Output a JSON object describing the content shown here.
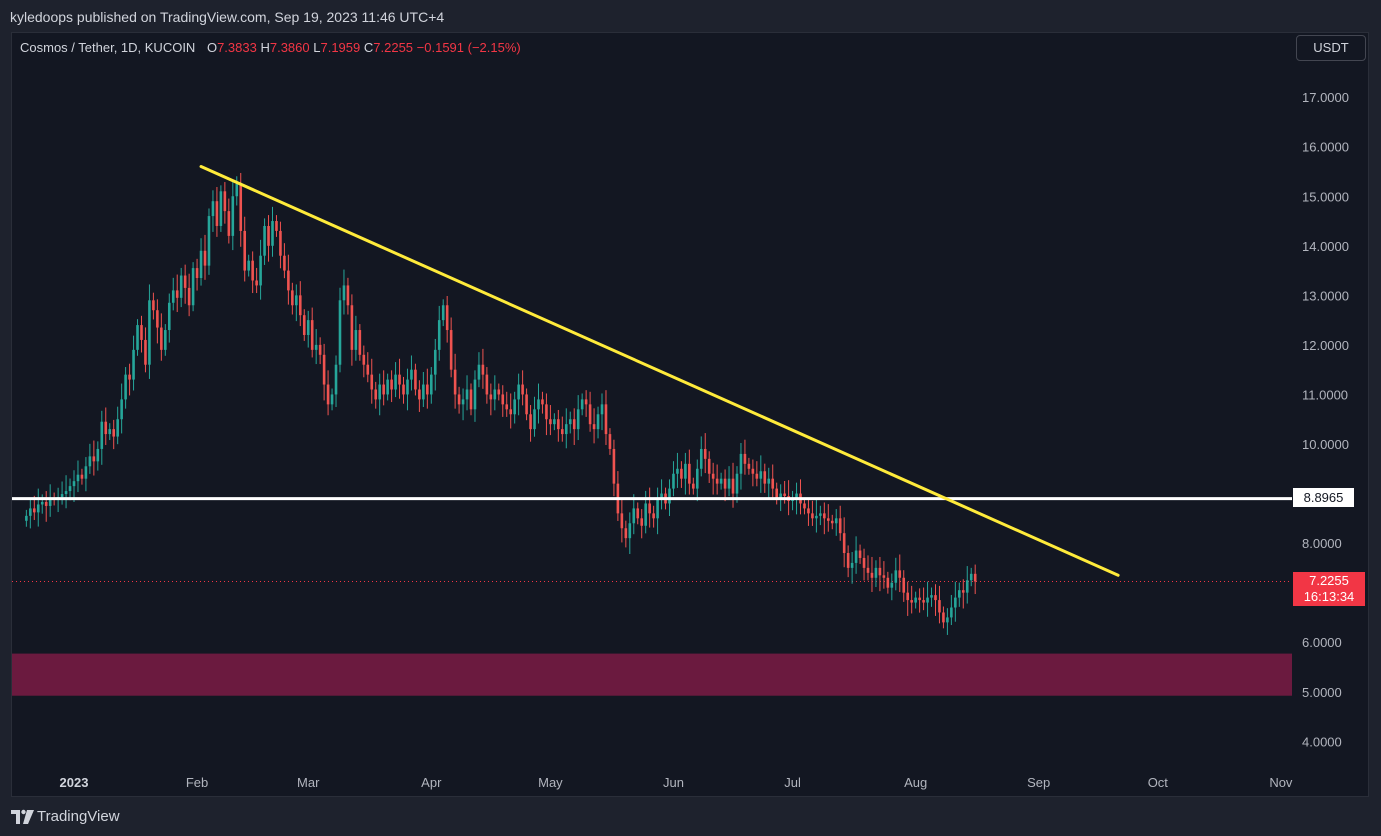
{
  "header": {
    "published_by": "kyledoops published on TradingView.com, Sep 19, 2023 11:46 UTC+4"
  },
  "legend": {
    "symbol": "Cosmos / Tether, 1D, KUCOIN",
    "open_label": "O",
    "open": "7.3833",
    "high_label": "H",
    "high": "7.3860",
    "low_label": "L",
    "low": "7.1959",
    "close_label": "C",
    "close": "7.2255",
    "change": "−0.1591 (−2.15%)"
  },
  "currency_button": "USDT",
  "price_tags": {
    "horizontal_line": "8.8965",
    "last_price": "7.2255",
    "countdown": "16:13:34"
  },
  "footer": {
    "brand": "TradingView"
  },
  "colors": {
    "up": "#26a69a",
    "down": "#ef5350",
    "trendline": "#ffeb3b",
    "support_line": "#ffffff",
    "demand_zone": "#6b1a3f",
    "background": "#131722"
  },
  "chart_data": {
    "type": "candlestick",
    "ylim": [
      3.4,
      17.6
    ],
    "y_ticks": [
      "17.0000",
      "16.0000",
      "15.0000",
      "14.0000",
      "13.0000",
      "12.0000",
      "11.0000",
      "10.0000",
      "8.0000",
      "6.0000",
      "5.0000",
      "4.0000"
    ],
    "x_ticks": [
      {
        "label": "2023",
        "date": "2023-01-01",
        "bold": true
      },
      {
        "label": "Feb",
        "date": "2023-02-01"
      },
      {
        "label": "Mar",
        "date": "2023-03-01"
      },
      {
        "label": "Apr",
        "date": "2023-04-01"
      },
      {
        "label": "May",
        "date": "2023-05-01"
      },
      {
        "label": "Jun",
        "date": "2023-06-01"
      },
      {
        "label": "Jul",
        "date": "2023-07-01"
      },
      {
        "label": "Aug",
        "date": "2023-08-01"
      },
      {
        "label": "Sep",
        "date": "2023-09-01"
      },
      {
        "label": "Oct",
        "date": "2023-10-01"
      },
      {
        "label": "Nov",
        "date": "2023-11-01"
      }
    ],
    "series": [
      {
        "start_date": "2022-12-20",
        "close": [
          8.55,
          8.7,
          8.62,
          8.78,
          8.83,
          8.75,
          8.9,
          8.88,
          8.93,
          8.99,
          9.05,
          9.15,
          9.25,
          9.38,
          9.3,
          9.55,
          9.75,
          9.65,
          9.9,
          10.45,
          10.2,
          10.3,
          10.15,
          10.5,
          10.9,
          11.4,
          11.3,
          11.9,
          12.4,
          12.1,
          11.6,
          12.9,
          12.7,
          12.35,
          11.9,
          12.3,
          12.85,
          13.1,
          12.95,
          13.4,
          13.15,
          12.8,
          13.55,
          13.35,
          13.9,
          13.6,
          14.6,
          14.9,
          14.4,
          15.1,
          14.7,
          14.2,
          15.0,
          15.25,
          14.3,
          13.5,
          13.7,
          13.3,
          13.2,
          13.8,
          14.4,
          14.0,
          14.5,
          14.3,
          13.8,
          13.5,
          13.1,
          12.8,
          13.0,
          12.6,
          12.2,
          12.5,
          11.9,
          12.0,
          11.8,
          11.2,
          10.8,
          11.0,
          11.6,
          12.9,
          13.2,
          12.8,
          11.9,
          12.3,
          11.8,
          11.6,
          11.4,
          11.1,
          10.9,
          11.2,
          11.0,
          11.3,
          11.1,
          11.4,
          11.2,
          11.0,
          11.3,
          11.5,
          11.1,
          10.9,
          11.2,
          11.0,
          11.4,
          11.9,
          12.5,
          12.8,
          12.3,
          11.5,
          11.0,
          10.8,
          10.9,
          11.1,
          10.7,
          11.3,
          11.6,
          11.4,
          11.0,
          10.9,
          11.1,
          11.0,
          10.8,
          10.7,
          10.6,
          10.9,
          11.2,
          11.0,
          10.6,
          10.3,
          10.7,
          10.9,
          10.8,
          10.5,
          10.4,
          10.5,
          10.3,
          10.2,
          10.4,
          10.5,
          10.3,
          10.7,
          10.9,
          10.8,
          10.4,
          10.3,
          10.6,
          10.8,
          10.2,
          9.9,
          9.2,
          8.6,
          8.3,
          8.1,
          8.4,
          8.7,
          8.5,
          8.35,
          8.8,
          8.6,
          8.5,
          8.9,
          9.0,
          8.8,
          9.1,
          9.4,
          9.5,
          9.3,
          9.6,
          9.2,
          9.1,
          9.5,
          9.9,
          9.7,
          9.4,
          9.3,
          9.2,
          9.3,
          9.1,
          9.3,
          9.0,
          9.4,
          9.8,
          9.6,
          9.5,
          9.4,
          9.3,
          9.45,
          9.2,
          9.3,
          9.1,
          8.9,
          9.0,
          8.95,
          8.85,
          8.9,
          9.0,
          8.8,
          8.7,
          8.6,
          8.5,
          8.55,
          8.6,
          8.5,
          8.45,
          8.4,
          8.5,
          8.2,
          7.8,
          7.5,
          7.6,
          7.85,
          7.7,
          7.5,
          7.4,
          7.3,
          7.5,
          7.35,
          7.3,
          7.1,
          7.2,
          7.45,
          7.3,
          7.0,
          6.85,
          6.8,
          6.9,
          6.85,
          6.8,
          6.9,
          6.95,
          6.85,
          6.6,
          6.4,
          6.5,
          6.7,
          6.9,
          7.05,
          7.0,
          7.25,
          7.38,
          7.2255
        ]
      }
    ],
    "trendline": [
      {
        "date": "2023-02-02",
        "price": 15.6
      },
      {
        "date": "2023-09-21",
        "price": 7.35
      }
    ],
    "horizontal_line": {
      "price": 8.8965
    },
    "demand_zone": {
      "top": 5.77,
      "bottom": 4.92
    },
    "last_price_line": {
      "price": 7.2255
    }
  }
}
